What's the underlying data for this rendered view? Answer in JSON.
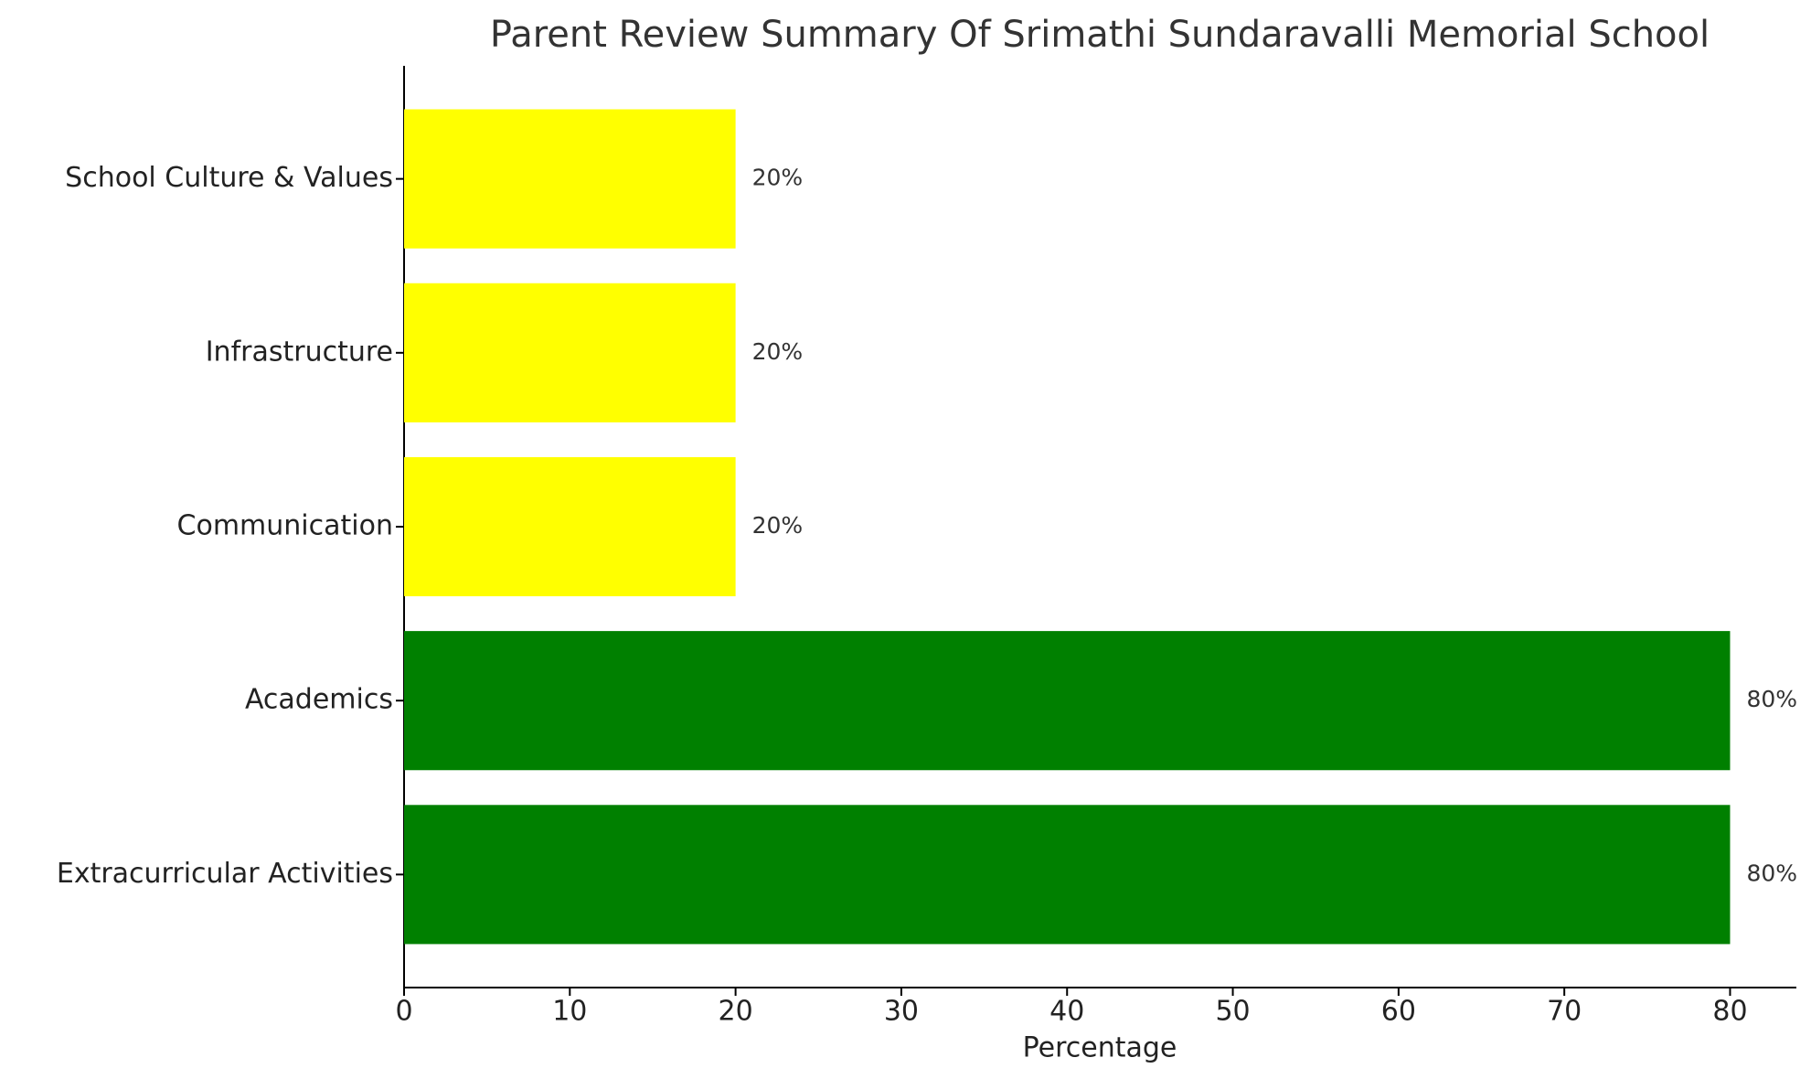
{
  "chart_data": {
    "type": "barh",
    "title": "Parent Review Summary Of Srimathi Sundaravalli Memorial School",
    "xlabel": "Percentage",
    "categories": [
      "Extracurricular Activities",
      "Academics",
      "Communication",
      "Infrastructure",
      "School Culture & Values"
    ],
    "values": [
      80,
      80,
      20,
      20,
      20
    ],
    "value_labels": [
      "80%",
      "80%",
      "20%",
      "20%",
      "20%"
    ],
    "colors": [
      "green",
      "green",
      "yellow",
      "yellow",
      "yellow"
    ],
    "xlim": [
      0,
      84
    ],
    "xticks": [
      0,
      10,
      20,
      30,
      40,
      50,
      60,
      70,
      80
    ],
    "grid": false
  }
}
